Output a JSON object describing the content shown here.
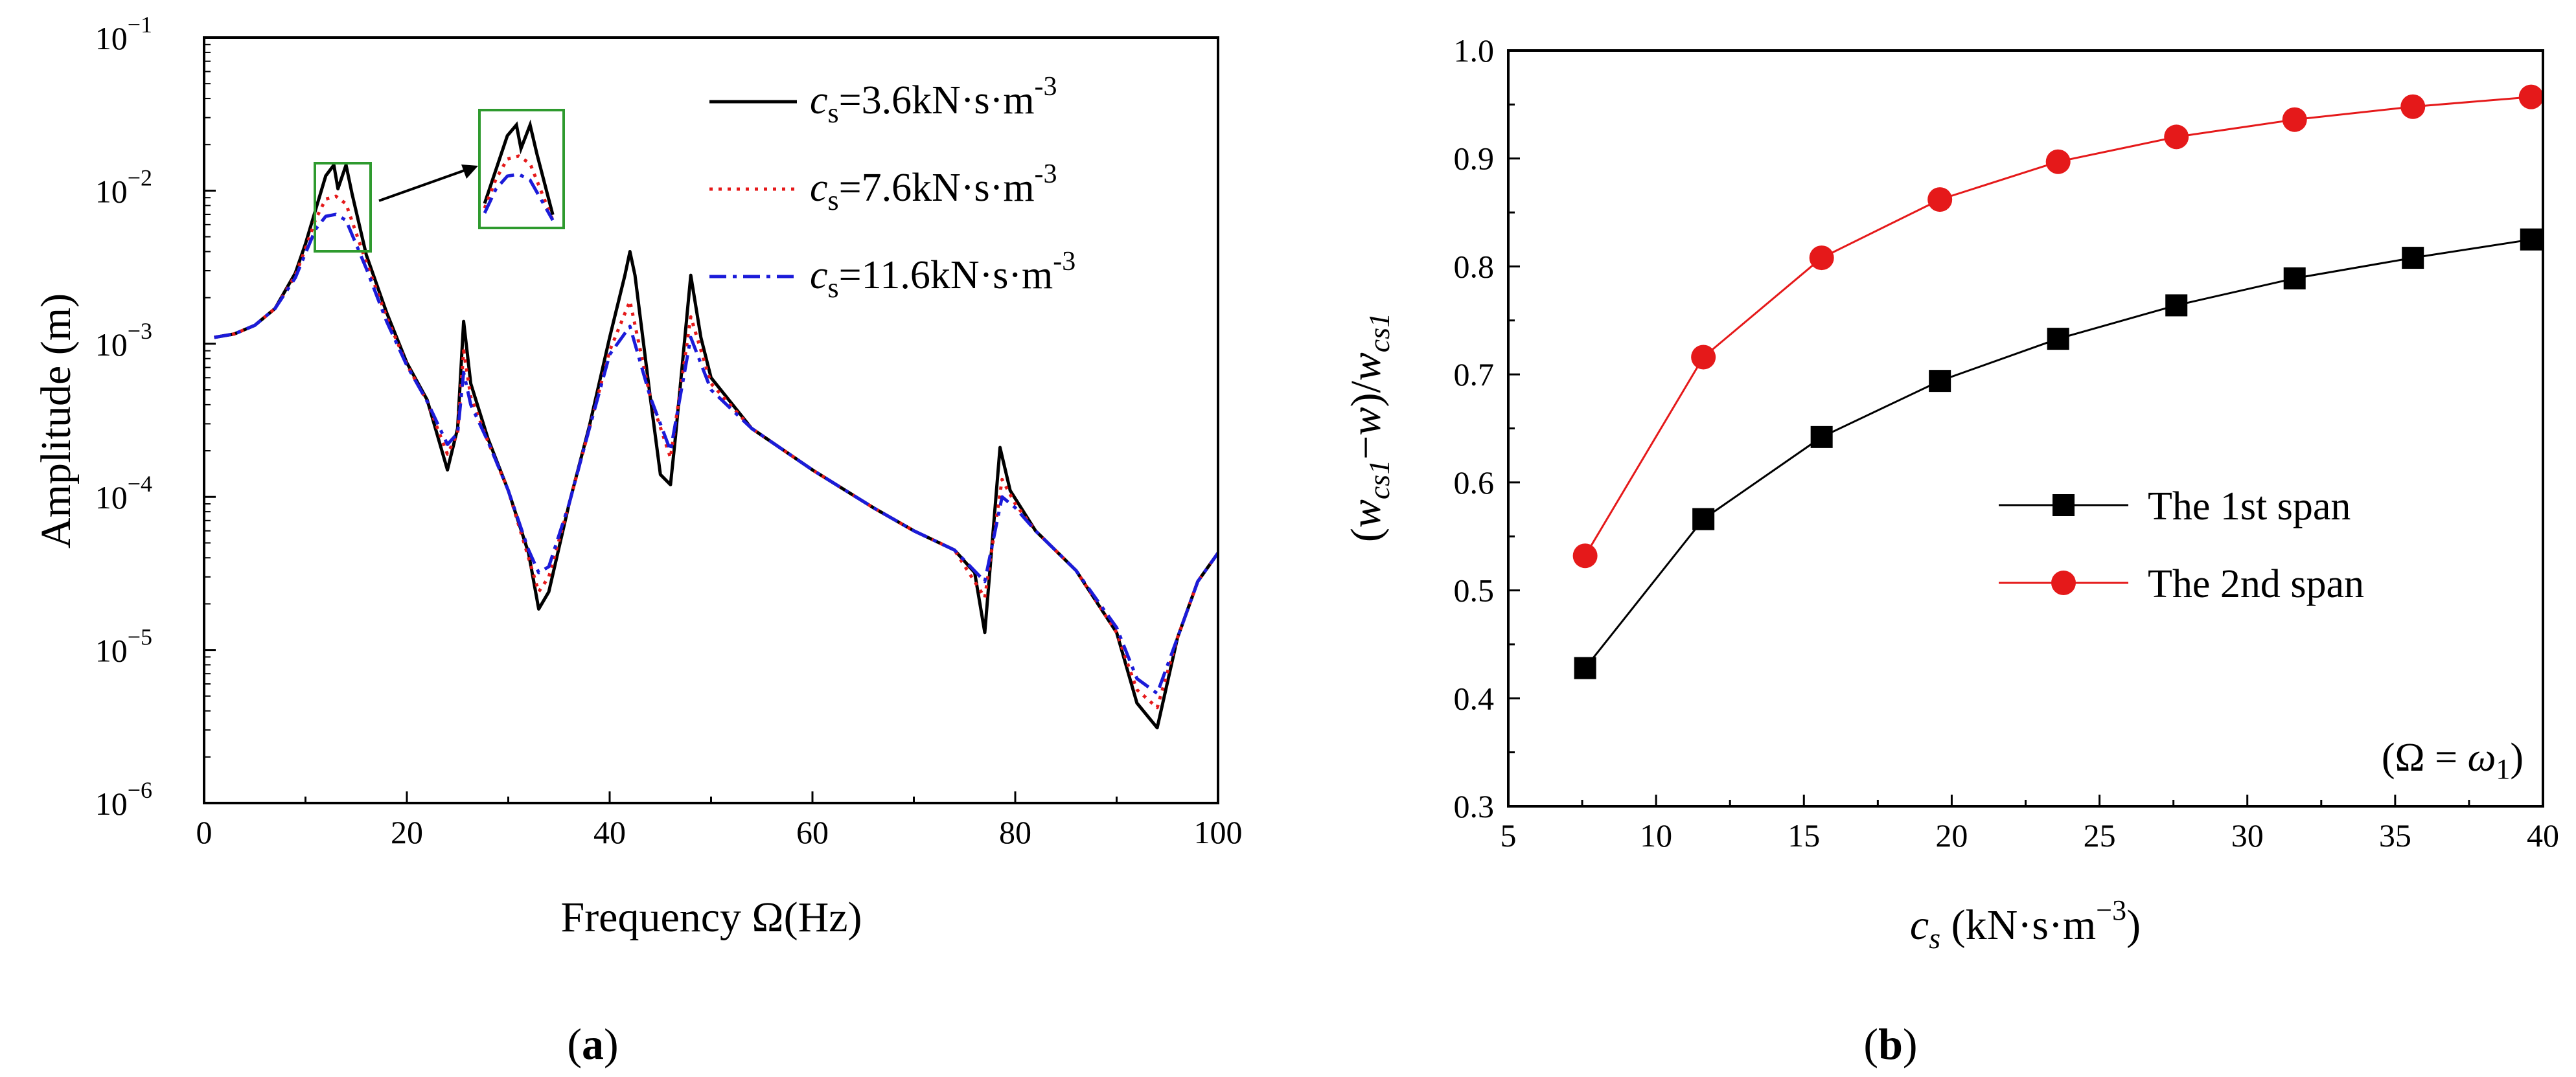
{
  "chart_data": [
    {
      "type": "line",
      "panel_label": "a",
      "xlabel": "Frequency Ω(Hz)",
      "ylabel": "Amplitude (m)",
      "xlim": [
        0,
        100
      ],
      "ylim": [
        1e-06,
        0.1
      ],
      "yscale": "log",
      "x_ticks": [
        "0",
        "20",
        "40",
        "60",
        "80",
        "100"
      ],
      "y_tick_mantissa": [
        "10",
        "10",
        "10",
        "10",
        "10",
        "10"
      ],
      "y_tick_exponents": [
        "−6",
        "−5",
        "−4",
        "−3",
        "−2",
        "−1"
      ],
      "legend_position": "top-right",
      "inset": "zoomed view of the peak near 13 Hz",
      "series": [
        {
          "name": "cs=3.6kN·s·m-3",
          "legend_symbol": "c",
          "legend_subscript": "s",
          "legend_text": "=3.6kN·s·m",
          "legend_sup": "-3",
          "color": "#000000",
          "style": "solid",
          "x": [
            1,
            3,
            5,
            7,
            9,
            10,
            11,
            12,
            12.8,
            13.2,
            14,
            14.6,
            16,
            18,
            20,
            22,
            24,
            25,
            25.6,
            26.3,
            28,
            30,
            32,
            33,
            34,
            36,
            38,
            40,
            41.5,
            42,
            42.5,
            44,
            45,
            46,
            46.5,
            48,
            49,
            50,
            54,
            60,
            66,
            70,
            74,
            76,
            77,
            78.5,
            79.5,
            82,
            86,
            90,
            92,
            94,
            96,
            98,
            100
          ],
          "y": [
            0.0011,
            0.00116,
            0.00132,
            0.0017,
            0.0029,
            0.0045,
            0.0075,
            0.0125,
            0.0147,
            0.0103,
            0.0147,
            0.0095,
            0.0038,
            0.0016,
            0.00075,
            0.00043,
            0.00015,
            0.00028,
            0.0014,
            0.00055,
            0.00024,
            0.00011,
            4.3e-05,
            1.85e-05,
            2.4e-05,
            9e-05,
            0.00029,
            0.0011,
            0.0028,
            0.004,
            0.0028,
            0.00045,
            0.00014,
            0.00012,
            0.00025,
            0.0028,
            0.0011,
            0.0006,
            0.00028,
            0.00015,
            8.5e-05,
            6e-05,
            4.5e-05,
            3.2e-05,
            1.3e-05,
            0.00021,
            0.00011,
            6e-05,
            3.3e-05,
            1.3e-05,
            4.5e-06,
            3.1e-06,
            1.2e-05,
            2.8e-05,
            4.3e-05
          ]
        },
        {
          "name": "cs=7.6kN·s·m-3",
          "legend_symbol": "c",
          "legend_subscript": "s",
          "legend_text": "=7.6kN·s·m",
          "legend_sup": "-3",
          "color": "#e5191a",
          "style": "dotted",
          "x": [
            1,
            3,
            5,
            7,
            9,
            10,
            11,
            12,
            13,
            14,
            16,
            18,
            20,
            22,
            24,
            25,
            25.6,
            26.3,
            28,
            30,
            32,
            33,
            34,
            36,
            38,
            40,
            42,
            44,
            46,
            48,
            50,
            54,
            60,
            66,
            70,
            74,
            77,
            78.7,
            80,
            82,
            86,
            90,
            92,
            94,
            96,
            98,
            100
          ],
          "y": [
            0.0011,
            0.00116,
            0.00132,
            0.0017,
            0.0028,
            0.0042,
            0.0065,
            0.0088,
            0.0092,
            0.0082,
            0.0034,
            0.0015,
            0.00073,
            0.00042,
            0.00019,
            0.00026,
            0.0009,
            0.00045,
            0.00023,
            0.00011,
            4e-05,
            2.4e-05,
            3e-05,
            9e-05,
            0.00028,
            0.0009,
            0.0019,
            0.00045,
            0.00018,
            0.0015,
            0.00055,
            0.00028,
            0.00015,
            8.5e-05,
            6e-05,
            4.5e-05,
            2.2e-05,
            0.00013,
            9e-05,
            6e-05,
            3.3e-05,
            1.3e-05,
            5.5e-06,
            4.2e-06,
            1.2e-05,
            2.8e-05,
            4.3e-05
          ]
        },
        {
          "name": "cs=11.6kN·s·m-3",
          "legend_symbol": "c",
          "legend_subscript": "s",
          "legend_text": "=11.6kN·s·m",
          "legend_sup": "-3",
          "color": "#1b1bd9",
          "style": "dashdot",
          "x": [
            1,
            3,
            5,
            7,
            9,
            10,
            11,
            12,
            13,
            14,
            16,
            18,
            20,
            22,
            24,
            25,
            25.6,
            26.3,
            28,
            30,
            32,
            33,
            34,
            36,
            38,
            40,
            42,
            44,
            46,
            48,
            50,
            54,
            60,
            66,
            70,
            74,
            77,
            78.7,
            80,
            82,
            86,
            90,
            92,
            94,
            96,
            98,
            100
          ],
          "y": [
            0.0011,
            0.00116,
            0.00132,
            0.0017,
            0.0027,
            0.0039,
            0.0056,
            0.0068,
            0.007,
            0.0064,
            0.0031,
            0.0014,
            0.00072,
            0.00042,
            0.00022,
            0.00026,
            0.00065,
            0.0004,
            0.00023,
            0.00011,
            4.5e-05,
            3.2e-05,
            3.5e-05,
            9e-05,
            0.00028,
            0.00085,
            0.0013,
            0.00045,
            0.0002,
            0.0011,
            0.0005,
            0.00028,
            0.00015,
            8.5e-05,
            6e-05,
            4.5e-05,
            2.8e-05,
            0.0001,
            8.5e-05,
            6e-05,
            3.3e-05,
            1.4e-05,
            6.5e-06,
            5.2e-06,
            1.2e-05,
            2.8e-05,
            4.3e-05
          ]
        }
      ]
    },
    {
      "type": "line",
      "panel_label": "b",
      "xlabel_symbol": "c",
      "xlabel_subscript": "s",
      "xlabel_text": " (kN·s·m",
      "xlabel_sup": "−3",
      "xlabel_close": ")",
      "ylabel_parts": [
        "(",
        "w",
        "cs1",
        "−",
        "w",
        ")/",
        "w",
        "cs1"
      ],
      "annotation_parts": [
        "(Ω = ",
        "ω",
        "1",
        ")"
      ],
      "xlim": [
        5,
        40
      ],
      "ylim": [
        0.3,
        1.0
      ],
      "x_ticks": [
        "5",
        "10",
        "15",
        "20",
        "25",
        "30",
        "35",
        "40"
      ],
      "y_ticks": [
        "0.3",
        "0.4",
        "0.5",
        "0.6",
        "0.7",
        "0.8",
        "0.9",
        "1.0"
      ],
      "legend_position": "lower-right",
      "series": [
        {
          "name": "The 1st span",
          "color": "#000000",
          "line_color": "#000000",
          "marker": "square",
          "x": [
            7.6,
            11.6,
            15.6,
            19.6,
            23.6,
            27.6,
            31.6,
            35.6,
            39.6
          ],
          "y": [
            0.428,
            0.566,
            0.642,
            0.694,
            0.733,
            0.764,
            0.789,
            0.808,
            0.825
          ]
        },
        {
          "name": "The 2nd span",
          "color": "#e5191a",
          "line_color": "#e5191a",
          "marker": "circle",
          "x": [
            7.6,
            11.6,
            15.6,
            19.6,
            23.6,
            27.6,
            31.6,
            35.6,
            39.6
          ],
          "y": [
            0.532,
            0.716,
            0.808,
            0.862,
            0.897,
            0.92,
            0.936,
            0.948,
            0.957
          ]
        }
      ]
    }
  ]
}
